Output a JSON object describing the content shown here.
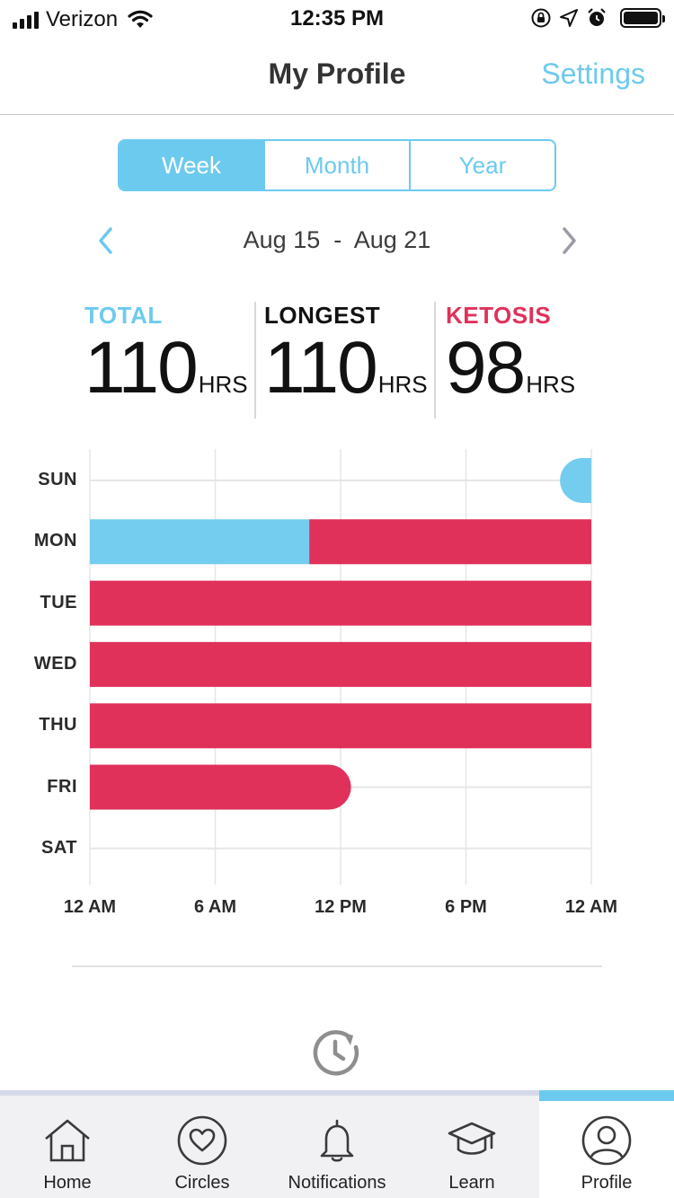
{
  "status_bar": {
    "carrier": "Verizon",
    "time": "12:35 PM",
    "icons": [
      "signal-icon",
      "wifi-icon",
      "orientation-lock-icon",
      "location-icon",
      "alarm-icon",
      "battery-icon"
    ]
  },
  "header": {
    "title": "My Profile",
    "settings_label": "Settings"
  },
  "range_tabs": {
    "options": [
      "Week",
      "Month",
      "Year"
    ],
    "selected": "Week"
  },
  "date_range": {
    "text": "Aug 15  -  Aug 21",
    "prev_icon": "chevron-left-icon",
    "next_icon": "chevron-right-icon"
  },
  "stats": {
    "total": {
      "label": "TOTAL",
      "value": "110",
      "unit": "HRS"
    },
    "longest": {
      "label": "LONGEST",
      "value": "110",
      "unit": "HRS"
    },
    "ketosis": {
      "label": "KETOSIS",
      "value": "98",
      "unit": "HRS"
    }
  },
  "chart_data": {
    "type": "bar",
    "orientation": "horizontal-timeline",
    "days": [
      "SUN",
      "MON",
      "TUE",
      "WED",
      "THU",
      "FRI",
      "SAT"
    ],
    "x_ticks": [
      "12 AM",
      "6 AM",
      "12 PM",
      "6 PM",
      "12 AM"
    ],
    "x_range_hours": [
      0,
      24
    ],
    "segments": [
      {
        "day": "SUN",
        "start": 22.5,
        "end": 24,
        "kind": "fasting"
      },
      {
        "day": "MON",
        "start": 0,
        "end": 10.5,
        "kind": "fasting"
      },
      {
        "day": "MON",
        "start": 10.5,
        "end": 24,
        "kind": "ketosis"
      },
      {
        "day": "TUE",
        "start": 0,
        "end": 24,
        "kind": "ketosis"
      },
      {
        "day": "WED",
        "start": 0,
        "end": 24,
        "kind": "ketosis"
      },
      {
        "day": "THU",
        "start": 0,
        "end": 24,
        "kind": "ketosis"
      },
      {
        "day": "FRI",
        "start": 0,
        "end": 12.5,
        "kind": "ketosis"
      }
    ],
    "colors": {
      "fasting": "#74cdef",
      "ketosis": "#e0315a",
      "grid": "#e6e6e6"
    }
  },
  "colors": {
    "accent": "#6ccaef",
    "total": "#6ccaef",
    "longest": "#111111",
    "ketosis": "#e0315a"
  },
  "history_icon": "history-icon",
  "tab_bar": {
    "items": [
      {
        "label": "Home",
        "icon": "home-icon"
      },
      {
        "label": "Circles",
        "icon": "heart-circle-icon"
      },
      {
        "label": "Notifications",
        "icon": "bell-icon"
      },
      {
        "label": "Learn",
        "icon": "graduation-cap-icon"
      },
      {
        "label": "Profile",
        "icon": "user-icon"
      }
    ],
    "active": "Profile"
  }
}
